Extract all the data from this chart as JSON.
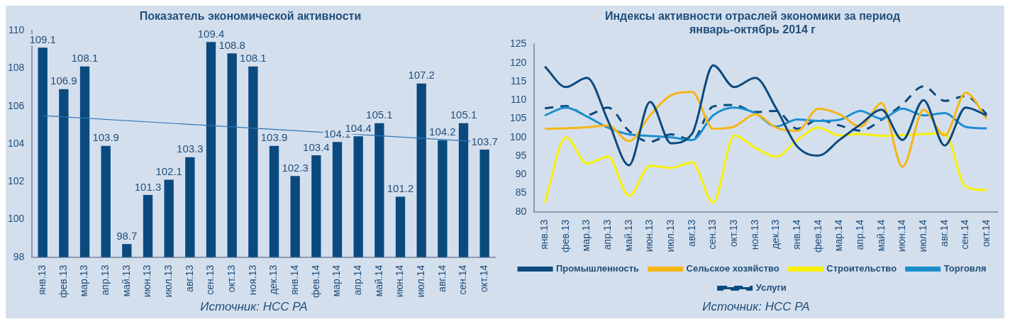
{
  "chart_data": [
    {
      "type": "bar",
      "title": "Показатель экономической активности",
      "categories": [
        "янв.13",
        "фев.13",
        "мар.13",
        "апр.13",
        "май.13",
        "июн.13",
        "июл.13",
        "авг.13",
        "сен.13",
        "окт.13",
        "ноя.13",
        "дек.13",
        "янв.14",
        "фев.14",
        "мар.14",
        "апр.14",
        "май.14",
        "июн.14",
        "июл.14",
        "авг.14",
        "сен.14",
        "окт.14"
      ],
      "series": [
        {
          "color": "#0b4a7e",
          "values": [
            109.1,
            106.9,
            108.1,
            103.9,
            98.7,
            101.3,
            102.1,
            103.3,
            109.4,
            108.8,
            108.1,
            103.9,
            102.3,
            103.4,
            104.1,
            104.4,
            105.1,
            101.2,
            107.2,
            104.2,
            105.1,
            103.7
          ],
          "value_labels": [
            "109.1",
            "106.9",
            "108.1",
            "103.9",
            "98.7",
            "101.3",
            "102.1",
            "103.3",
            "109.4",
            "108.8",
            "108.1",
            "103.9",
            "102.3",
            "103.4",
            "104.1",
            "104.4",
            "105.1",
            "101.2",
            "107.2",
            "104.2",
            "105.1",
            "103.7"
          ]
        },
        {
          "type": "line",
          "color": "#2e75b6",
          "x": [
            "янв.13",
            "окт.14"
          ],
          "values": [
            105.5,
            104.1
          ]
        }
      ],
      "ylim": [
        98,
        110
      ],
      "yticks": [
        98,
        100,
        102,
        104,
        106,
        108,
        110
      ],
      "grid": false,
      "legend": false,
      "annotations": [
        "Источник: НСС РА"
      ]
    },
    {
      "type": "line",
      "title": "Индексы активности отраслей экономики за период\nянварь-октябрь 2014 г",
      "categories": [
        "янв.13",
        "фев.13",
        "мар.13",
        "апр.13",
        "май.13",
        "июн.13",
        "июл.13",
        "авг.13",
        "сен.13",
        "окт.13",
        "ноя.13",
        "дек.13",
        "янв.14",
        "фев.14",
        "мар.14",
        "апр.14",
        "май.14",
        "июн.14",
        "июл.14",
        "авг.14",
        "сен.14",
        "окт.14"
      ],
      "series": [
        {
          "name": "Промышленность",
          "color": "#0b4a7e",
          "values": [
            119,
            113.5,
            116,
            104.5,
            92.5,
            109.5,
            98.4,
            101,
            119.3,
            113.5,
            116,
            107.7,
            97.5,
            95.1,
            99.3,
            103.5,
            107.4,
            99.3,
            110,
            97.8,
            108,
            105.9
          ]
        },
        {
          "name": "Сельское хозяйство",
          "color": "#f5b617",
          "values": [
            102.3,
            102.4,
            102.7,
            103.2,
            99,
            105.9,
            111.3,
            112.2,
            102.3,
            102.9,
            106.2,
            102.6,
            101.7,
            107.7,
            106.2,
            102.9,
            109.2,
            92.1,
            107.4,
            100.5,
            112,
            105
          ]
        },
        {
          "name": "Строительство",
          "color": "#f7f000",
          "values": [
            82.5,
            100,
            93,
            94.8,
            84.3,
            92.4,
            91.8,
            93.3,
            82.5,
            100.5,
            97.2,
            94.8,
            99.3,
            102.6,
            100.5,
            100.9,
            100.4,
            100.6,
            100.9,
            101.1,
            86.7,
            85.8
          ]
        },
        {
          "name": "Торговля",
          "color": "#1b8fd0",
          "values": [
            105.9,
            108,
            105.6,
            102.6,
            100.8,
            100.4,
            100,
            99.3,
            105.9,
            108,
            106.5,
            102.9,
            104.8,
            104.4,
            104.7,
            107.1,
            105,
            107.7,
            105.9,
            106.5,
            102.8,
            102.4
          ]
        },
        {
          "name": "Услуги",
          "color": "#0b4a7e",
          "line_style": "dashed",
          "values": [
            107.8,
            108.4,
            106,
            108,
            101.7,
            98.8,
            100.8,
            99.3,
            108.3,
            108.7,
            106.8,
            107.1,
            102.3,
            104.7,
            103.2,
            101.8,
            104.7,
            108.9,
            113.7,
            109.8,
            111.1,
            106.2
          ]
        }
      ],
      "ylim": [
        80,
        125
      ],
      "yticks": [
        80,
        85,
        90,
        95,
        100,
        105,
        110,
        115,
        120,
        125
      ],
      "grid": false,
      "legend": "bottom",
      "marker": "none",
      "line_style": "solid",
      "annotations": [
        "Источник: НСС РА"
      ]
    }
  ]
}
